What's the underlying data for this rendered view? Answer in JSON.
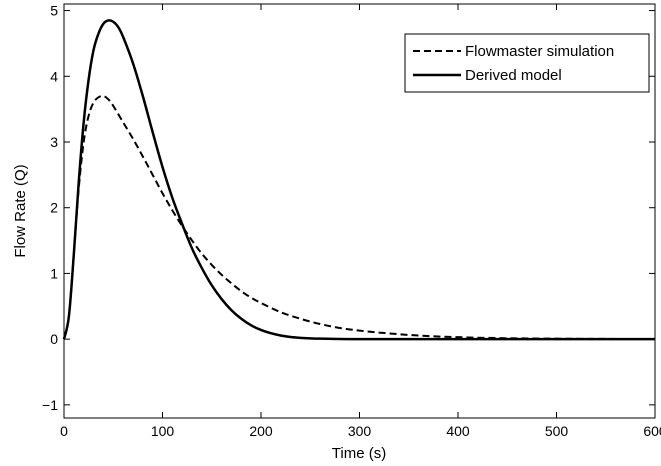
{
  "chart_data": {
    "type": "line",
    "title": "",
    "xlabel": "Time (s)",
    "ylabel": "Flow Rate (Q)",
    "xlim": [
      0,
      600
    ],
    "ylim": [
      -1.2,
      5.1
    ],
    "xticks": [
      0,
      100,
      200,
      300,
      400,
      500,
      600
    ],
    "yticks": [
      -1,
      0,
      1,
      2,
      3,
      4,
      5
    ],
    "xtick_labels": [
      "0",
      "100",
      "200",
      "300",
      "400",
      "500",
      "600"
    ],
    "ytick_labels": [
      "−1",
      "0",
      "1",
      "2",
      "3",
      "4",
      "5"
    ],
    "grid": false,
    "legend_position": "top-right",
    "series": [
      {
        "name": "Flowmaster simulation",
        "style": "dashed",
        "color": "#000000",
        "x": [
          0,
          5,
          10,
          15,
          20,
          25,
          30,
          35,
          40,
          45,
          50,
          60,
          70,
          80,
          90,
          100,
          110,
          120,
          130,
          140,
          150,
          160,
          170,
          180,
          190,
          200,
          220,
          240,
          260,
          280,
          300,
          320,
          340,
          360,
          380,
          400,
          420,
          440,
          460,
          480,
          500,
          520,
          540,
          560,
          580,
          600
        ],
        "y": [
          0,
          0.35,
          1.3,
          2.3,
          3.0,
          3.4,
          3.6,
          3.68,
          3.7,
          3.65,
          3.55,
          3.3,
          3.05,
          2.78,
          2.5,
          2.22,
          1.96,
          1.72,
          1.5,
          1.3,
          1.13,
          0.98,
          0.85,
          0.73,
          0.63,
          0.55,
          0.41,
          0.31,
          0.23,
          0.17,
          0.13,
          0.1,
          0.075,
          0.055,
          0.04,
          0.03,
          0.022,
          0.016,
          0.012,
          0.009,
          0.007,
          0.005,
          0.004,
          0.003,
          0.002,
          0.002
        ]
      },
      {
        "name": "Derived model",
        "style": "solid",
        "color": "#000000",
        "x": [
          0,
          5,
          10,
          15,
          20,
          25,
          30,
          35,
          40,
          45,
          50,
          55,
          60,
          70,
          80,
          90,
          100,
          110,
          120,
          130,
          140,
          150,
          160,
          170,
          180,
          190,
          200,
          210,
          220,
          230,
          240,
          250,
          260,
          280,
          300,
          320,
          350,
          400,
          450,
          500,
          550,
          600
        ],
        "y": [
          0,
          0.35,
          1.3,
          2.4,
          3.3,
          3.95,
          4.4,
          4.65,
          4.8,
          4.85,
          4.83,
          4.75,
          4.6,
          4.2,
          3.7,
          3.15,
          2.62,
          2.15,
          1.75,
          1.38,
          1.08,
          0.82,
          0.61,
          0.44,
          0.31,
          0.21,
          0.14,
          0.09,
          0.055,
          0.033,
          0.02,
          0.012,
          0.007,
          0.002,
          0.001,
          0,
          0,
          0,
          0,
          0,
          0,
          0
        ]
      }
    ]
  }
}
